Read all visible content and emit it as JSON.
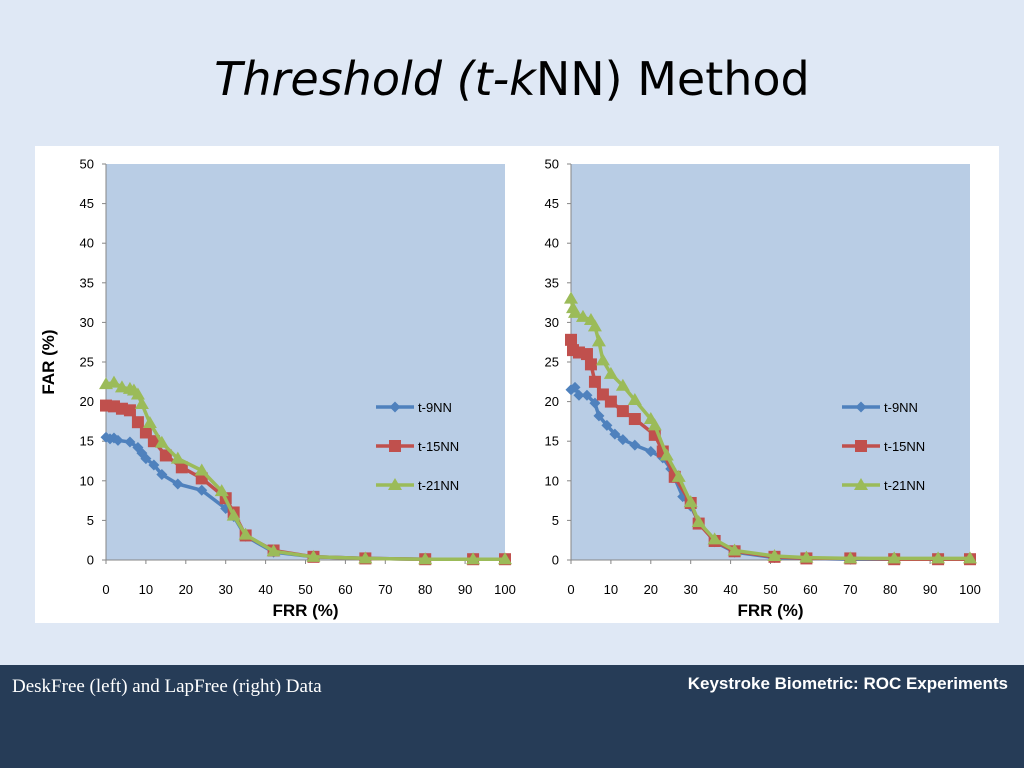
{
  "slide": {
    "title_part1": "Threshold (t-",
    "title_part2": "k",
    "title_part3": "NN) Method"
  },
  "footer": {
    "left_text": "DeskFree (left) and LapFree (right) Data",
    "right_text": "Keystroke Biometric: ROC Experiments"
  },
  "colors": {
    "plot_bg": "#b9cde5",
    "t9": "#4f81bd",
    "t15": "#c0504d",
    "t21": "#9bbb59",
    "footer_bg": "#263c57"
  },
  "chart_data": [
    {
      "type": "line",
      "title": "",
      "xlabel": "FRR (%)",
      "ylabel": "FAR (%)",
      "xlim": [
        0,
        100
      ],
      "ylim": [
        0,
        50
      ],
      "xticks": [
        0,
        10,
        20,
        30,
        40,
        50,
        60,
        70,
        80,
        90,
        100
      ],
      "yticks": [
        0,
        5,
        10,
        15,
        20,
        25,
        30,
        35,
        40,
        45,
        50
      ],
      "grid": false,
      "legend_position": "right",
      "series": [
        {
          "name": "t-9NN",
          "marker": "diamond",
          "points": [
            [
              0,
              15.5
            ],
            [
              1,
              15.3
            ],
            [
              2,
              15.4
            ],
            [
              3,
              15.1
            ],
            [
              6,
              14.9
            ],
            [
              8,
              14.2
            ],
            [
              9,
              13.5
            ],
            [
              10,
              12.8
            ],
            [
              12,
              12
            ],
            [
              14,
              10.8
            ],
            [
              18,
              9.6
            ],
            [
              24,
              8.8
            ],
            [
              30,
              6.5
            ],
            [
              32,
              5.5
            ],
            [
              35,
              3
            ],
            [
              42,
              1
            ],
            [
              52,
              0.4
            ],
            [
              65,
              0.2
            ],
            [
              80,
              0.1
            ],
            [
              92,
              0.1
            ],
            [
              100,
              0.1
            ]
          ]
        },
        {
          "name": "t-15NN",
          "marker": "square",
          "points": [
            [
              0,
              19.5
            ],
            [
              2,
              19.4
            ],
            [
              4,
              19.1
            ],
            [
              6,
              18.9
            ],
            [
              8,
              17.4
            ],
            [
              10,
              16.1
            ],
            [
              12,
              15
            ],
            [
              15,
              13.2
            ],
            [
              19,
              11.7
            ],
            [
              24,
              10.3
            ],
            [
              30,
              7.8
            ],
            [
              32,
              6
            ],
            [
              35,
              3.1
            ],
            [
              42,
              1.2
            ],
            [
              52,
              0.4
            ],
            [
              65,
              0.2
            ],
            [
              80,
              0.1
            ],
            [
              92,
              0.1
            ],
            [
              100,
              0.1
            ]
          ]
        },
        {
          "name": "t-21NN",
          "marker": "triangle",
          "points": [
            [
              0,
              22.2
            ],
            [
              2,
              22.4
            ],
            [
              4,
              21.8
            ],
            [
              6,
              21.6
            ],
            [
              7,
              21.4
            ],
            [
              8,
              20.9
            ],
            [
              9,
              19.7
            ],
            [
              11,
              17.3
            ],
            [
              14,
              14.8
            ],
            [
              18,
              12.8
            ],
            [
              24,
              11.3
            ],
            [
              29,
              8.7
            ],
            [
              32,
              5.6
            ],
            [
              35,
              3.2
            ],
            [
              42,
              1.1
            ],
            [
              52,
              0.4
            ],
            [
              65,
              0.2
            ],
            [
              80,
              0.1
            ],
            [
              92,
              0.1
            ],
            [
              100,
              0.1
            ]
          ]
        }
      ]
    },
    {
      "type": "line",
      "title": "",
      "xlabel": "FRR (%)",
      "ylabel": "",
      "xlim": [
        0,
        100
      ],
      "ylim": [
        0,
        50
      ],
      "xticks": [
        0,
        10,
        20,
        30,
        40,
        50,
        60,
        70,
        80,
        90,
        100
      ],
      "yticks": [
        0,
        5,
        10,
        15,
        20,
        25,
        30,
        35,
        40,
        45,
        50
      ],
      "grid": false,
      "legend_position": "right",
      "series": [
        {
          "name": "t-9NN",
          "marker": "diamond",
          "points": [
            [
              0,
              21.5
            ],
            [
              1,
              21.8
            ],
            [
              2,
              20.8
            ],
            [
              4,
              20.8
            ],
            [
              6,
              19.8
            ],
            [
              7,
              18.2
            ],
            [
              9,
              17
            ],
            [
              11,
              15.9
            ],
            [
              13,
              15.2
            ],
            [
              16,
              14.5
            ],
            [
              20,
              13.7
            ],
            [
              23,
              12.9
            ],
            [
              25,
              11.5
            ],
            [
              28,
              8
            ],
            [
              30,
              6.8
            ],
            [
              32,
              4.8
            ],
            [
              36,
              2.3
            ],
            [
              41,
              1
            ],
            [
              51,
              0.3
            ],
            [
              59,
              0.2
            ],
            [
              70,
              0.1
            ],
            [
              81,
              0.1
            ],
            [
              92,
              0.1
            ],
            [
              100,
              0.1
            ]
          ]
        },
        {
          "name": "t-15NN",
          "marker": "square",
          "points": [
            [
              0,
              27.8
            ],
            [
              0.5,
              26.5
            ],
            [
              2,
              26.2
            ],
            [
              4,
              26
            ],
            [
              5,
              24.7
            ],
            [
              6,
              22.5
            ],
            [
              8,
              20.9
            ],
            [
              10,
              20
            ],
            [
              13,
              18.8
            ],
            [
              16,
              17.8
            ],
            [
              21,
              15.8
            ],
            [
              23,
              13.7
            ],
            [
              26,
              10.5
            ],
            [
              30,
              7.2
            ],
            [
              32,
              4.6
            ],
            [
              36,
              2.4
            ],
            [
              41,
              1.1
            ],
            [
              51,
              0.4
            ],
            [
              59,
              0.2
            ],
            [
              70,
              0.2
            ],
            [
              81,
              0.1
            ],
            [
              92,
              0.1
            ],
            [
              100,
              0.1
            ]
          ]
        },
        {
          "name": "t-21NN",
          "marker": "triangle",
          "points": [
            [
              0,
              33
            ],
            [
              0.5,
              31.8
            ],
            [
              1,
              31.2
            ],
            [
              3,
              30.7
            ],
            [
              5,
              30.3
            ],
            [
              6,
              29.5
            ],
            [
              7,
              27.6
            ],
            [
              8,
              25.2
            ],
            [
              10,
              23.5
            ],
            [
              13,
              22
            ],
            [
              16,
              20.2
            ],
            [
              20,
              17.8
            ],
            [
              21,
              17
            ],
            [
              24,
              13.2
            ],
            [
              27,
              10.5
            ],
            [
              30,
              7.3
            ],
            [
              32,
              4.8
            ],
            [
              36,
              2.6
            ],
            [
              41,
              1.2
            ],
            [
              51,
              0.5
            ],
            [
              59,
              0.3
            ],
            [
              70,
              0.2
            ],
            [
              81,
              0.2
            ],
            [
              92,
              0.2
            ],
            [
              100,
              0.2
            ]
          ]
        }
      ]
    }
  ]
}
